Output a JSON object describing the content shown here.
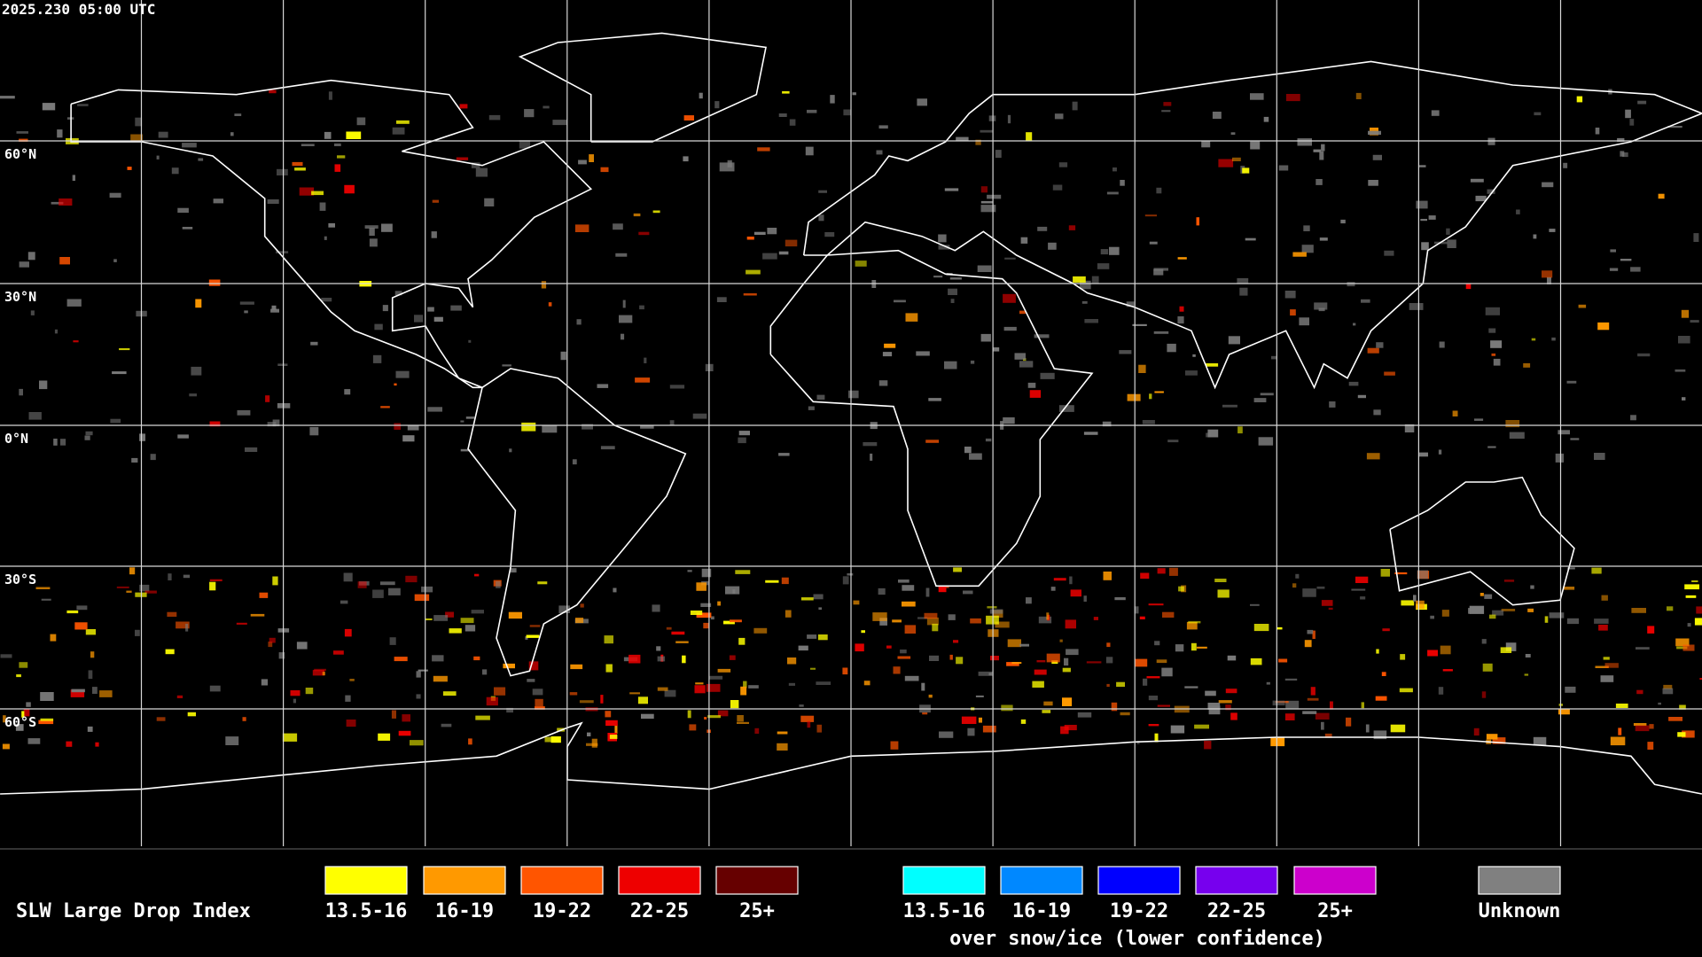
{
  "header": {
    "timestamp": "2025.230 05:00 UTC"
  },
  "map": {
    "latitude_labels": [
      "60°N",
      "30°N",
      "0°N",
      "30°S",
      "60°S"
    ]
  },
  "legend": {
    "title": "SLW Large Drop Index",
    "liquid": [
      {
        "label": "13.5-16",
        "color": "#ffff00"
      },
      {
        "label": "16-19",
        "color": "#ff9900"
      },
      {
        "label": "19-22",
        "color": "#ff5500"
      },
      {
        "label": "22-25",
        "color": "#ee0000"
      },
      {
        "label": "25+",
        "color": "#660000"
      }
    ],
    "snow_ice": [
      {
        "label": "13.5-16",
        "color": "#00ffff"
      },
      {
        "label": "16-19",
        "color": "#0088ff"
      },
      {
        "label": "19-22",
        "color": "#0000ff"
      },
      {
        "label": "22-25",
        "color": "#7700ee"
      },
      {
        "label": "25+",
        "color": "#cc00cc"
      }
    ],
    "snow_ice_caption": "over snow/ice (lower confidence)",
    "unknown": {
      "label": "Unknown",
      "color": "#808080"
    }
  }
}
